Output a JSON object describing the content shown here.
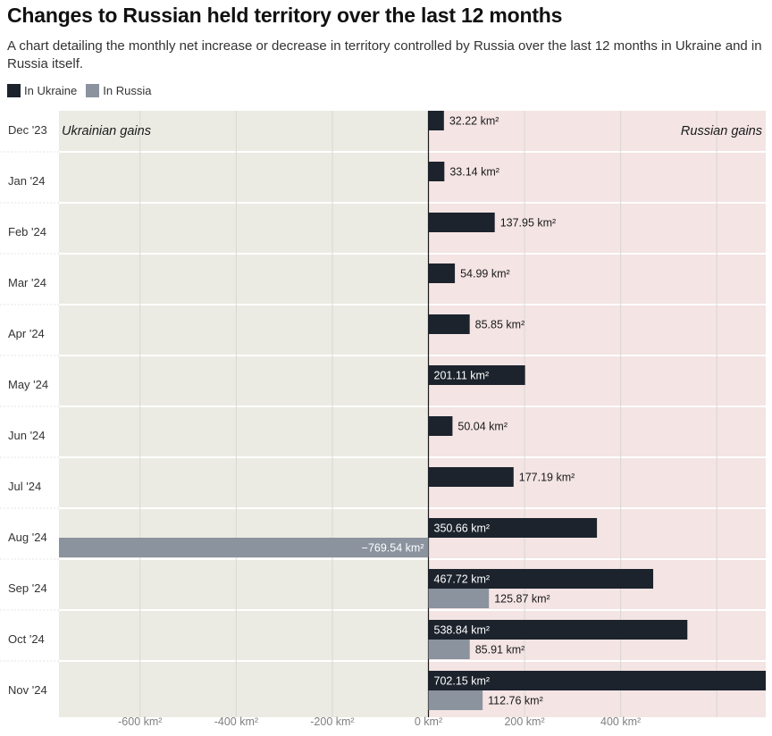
{
  "title": "Changes to Russian held territory over the last 12 months",
  "subtitle": "A chart detailing the monthly net increase or decrease in territory controlled by Russia over the last 12 months in Ukraine and in Russia itself.",
  "colors": {
    "in_ukraine": "#1c232d",
    "in_russia": "#8a939e",
    "ukrainian_gains_bg": "#ebebe4",
    "russian_gains_bg": "#f4e4e4",
    "label_dark": "#1a1a1a",
    "label_light": "#ffffff",
    "tick_label": "#808080"
  },
  "legend": [
    {
      "label": "In Ukraine",
      "color": "#1c232d"
    },
    {
      "label": "In Russia",
      "color": "#8a939e"
    }
  ],
  "chart_data": {
    "type": "bar",
    "orientation": "horizontal",
    "categories": [
      "Dec '23",
      "Jan '24",
      "Feb '24",
      "Mar '24",
      "Apr '24",
      "May '24",
      "Jun '24",
      "Jul '24",
      "Aug '24",
      "Sep '24",
      "Oct '24",
      "Nov '24"
    ],
    "series": [
      {
        "name": "In Ukraine",
        "values": [
          32.22,
          33.14,
          137.95,
          54.99,
          85.85,
          201.11,
          50.04,
          177.19,
          350.66,
          467.72,
          538.84,
          702.15
        ],
        "labels": [
          "32.22 km²",
          "33.14 km²",
          "137.95 km²",
          "54.99 km²",
          "85.85 km²",
          "201.11 km²",
          "50.04 km²",
          "177.19 km²",
          "350.66 km²",
          "467.72 km²",
          "538.84 km²",
          "702.15 km²"
        ]
      },
      {
        "name": "In Russia",
        "values": [
          null,
          null,
          null,
          null,
          null,
          null,
          null,
          null,
          -769.54,
          125.87,
          85.91,
          112.76
        ],
        "labels": [
          null,
          null,
          null,
          null,
          null,
          null,
          null,
          null,
          "−769.54 km²",
          "125.87 km²",
          "85.91 km²",
          "112.76 km²"
        ]
      }
    ],
    "xlim": [
      -770,
      700
    ],
    "x_ticks": [
      -600,
      -400,
      -200,
      0,
      200,
      400
    ],
    "x_tick_labels": [
      "-600 km²",
      "-400 km²",
      "-200 km²",
      "0 km²",
      "200 km²",
      "400 km²"
    ],
    "region_labels": {
      "negative": "Ukrainian gains",
      "positive": "Russian gains"
    },
    "grid": true,
    "legend_position": "top-left"
  }
}
